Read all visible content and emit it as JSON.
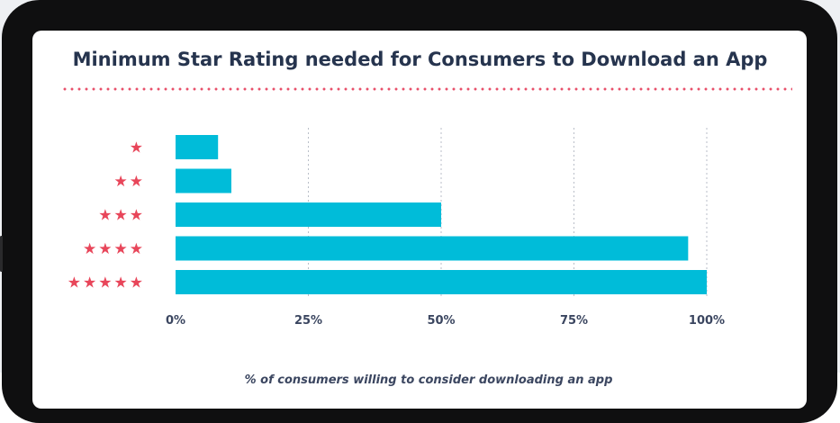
{
  "chart_data": {
    "type": "bar",
    "orientation": "horizontal",
    "title": "Minimum Star Rating needed for Consumers to Download an App",
    "categories": [
      "★",
      "★★",
      "★★★",
      "★★★★",
      "★★★★★"
    ],
    "values": [
      8,
      10.5,
      50,
      96.5,
      100
    ],
    "xlabel": "% of consumers willing to consider downloading an app",
    "ylabel": "",
    "xlim": [
      0,
      100
    ],
    "xticks": [
      "0%",
      "25%",
      "50%",
      "75%",
      "100%"
    ],
    "grid": true,
    "bar_color": "#00bcd9",
    "star_color": "#e8465a"
  }
}
